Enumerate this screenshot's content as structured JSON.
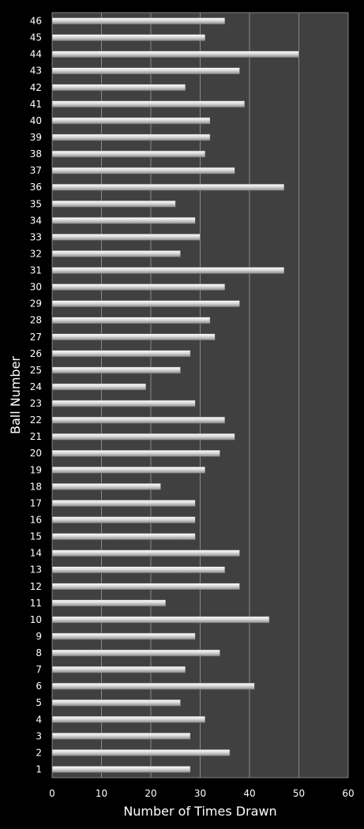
{
  "chart_data": {
    "type": "bar",
    "orientation": "horizontal",
    "xlabel": "Number of Times Drawn",
    "ylabel": "Ball Number",
    "xlim": [
      0,
      60
    ],
    "xticks": [
      0,
      10,
      20,
      30,
      40,
      50,
      60
    ],
    "grid": "vertical",
    "legend": "none",
    "categories": [
      "1",
      "2",
      "3",
      "4",
      "5",
      "6",
      "7",
      "8",
      "9",
      "10",
      "11",
      "12",
      "13",
      "14",
      "15",
      "16",
      "17",
      "18",
      "19",
      "20",
      "21",
      "22",
      "23",
      "24",
      "25",
      "26",
      "27",
      "28",
      "29",
      "30",
      "31",
      "32",
      "33",
      "34",
      "35",
      "36",
      "37",
      "38",
      "39",
      "40",
      "41",
      "42",
      "43",
      "44",
      "45",
      "46"
    ],
    "values": [
      28,
      36,
      28,
      31,
      26,
      41,
      27,
      34,
      29,
      44,
      23,
      38,
      35,
      38,
      29,
      29,
      29,
      22,
      31,
      34,
      37,
      35,
      29,
      19,
      26,
      28,
      33,
      32,
      38,
      35,
      47,
      26,
      30,
      29,
      25,
      47,
      37,
      31,
      32,
      32,
      39,
      27,
      38,
      50,
      31,
      35
    ]
  },
  "colors": {
    "background": "#000000",
    "plot_area": "#404040",
    "grid": "#8a8a8a",
    "bar_light": "#ffffff",
    "bar_mid": "#d9d9d9",
    "bar_dark": "#8c8c8c",
    "text": "#ffffff"
  }
}
